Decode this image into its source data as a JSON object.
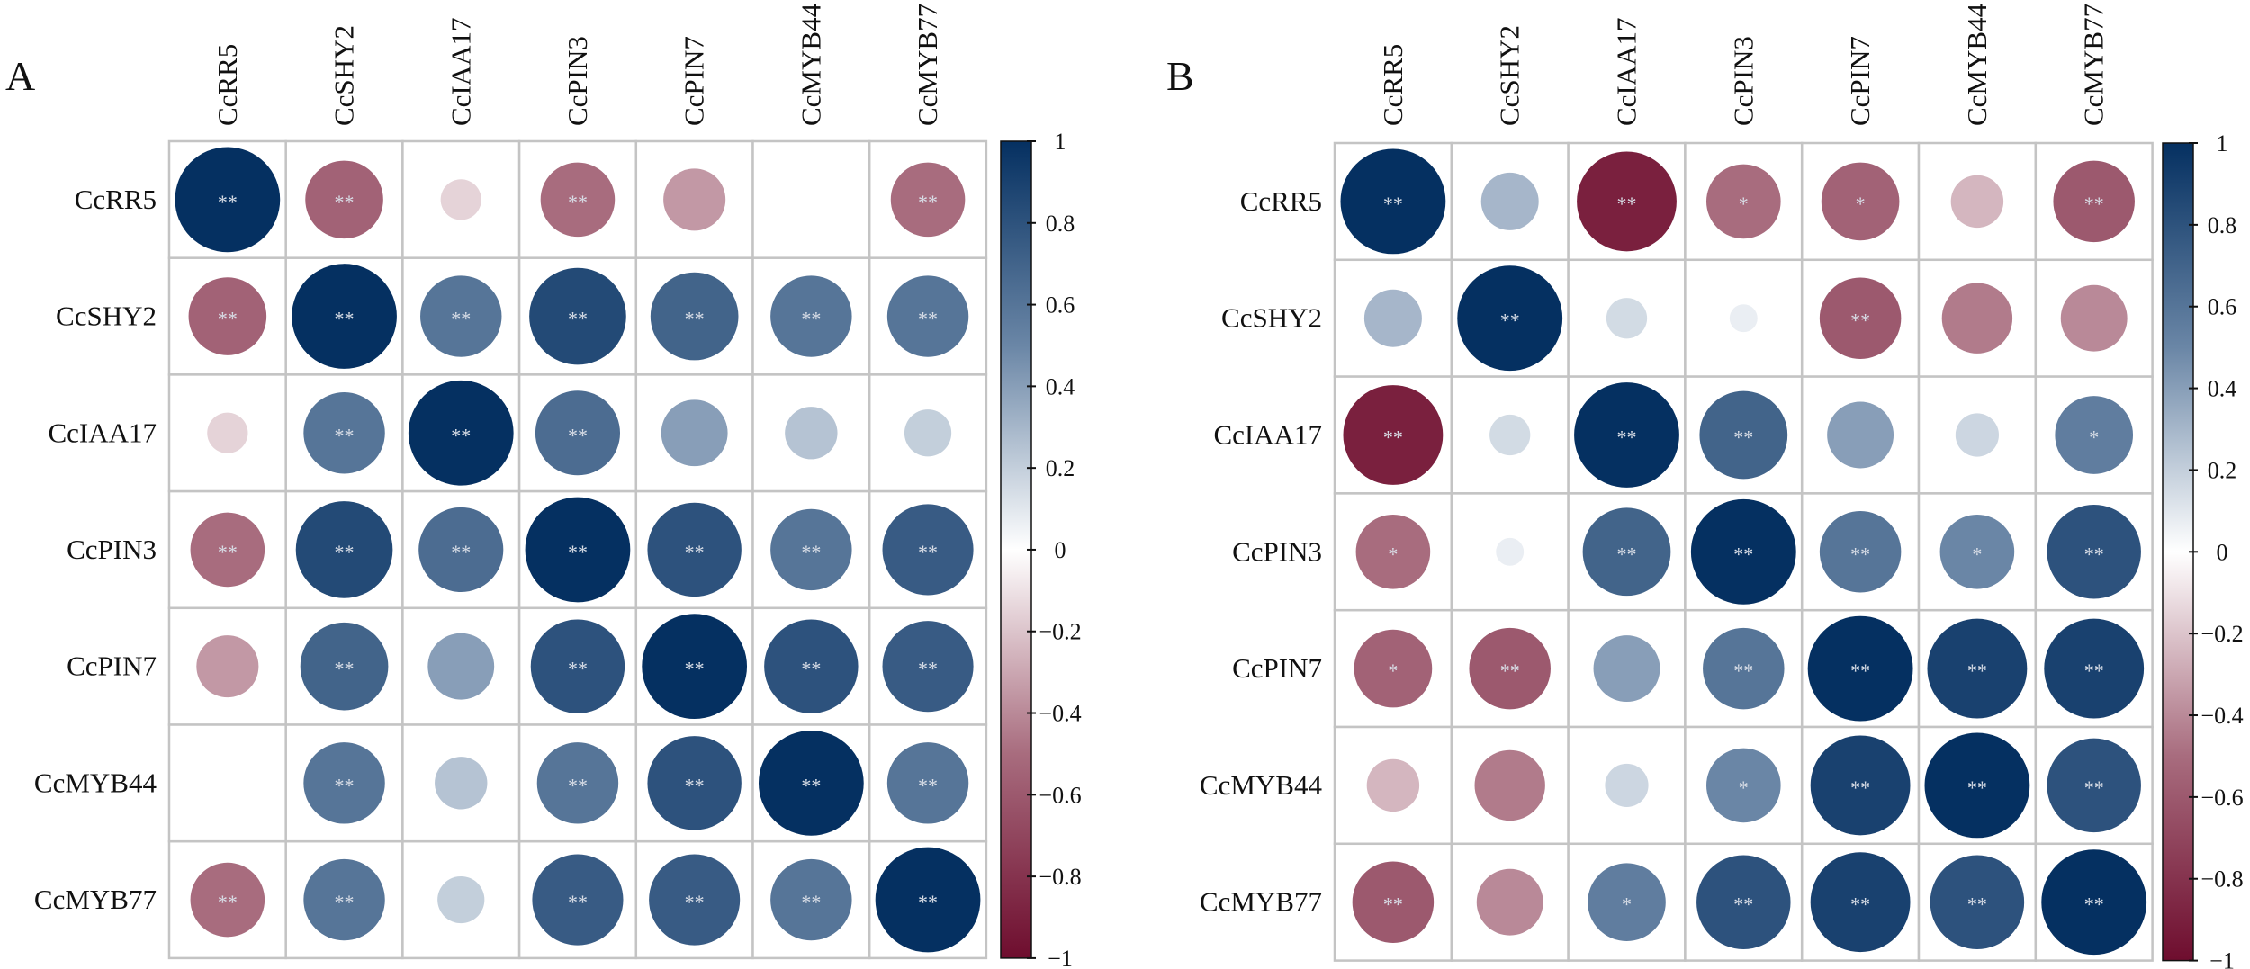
{
  "chart_data": [
    {
      "type": "heatmap",
      "panel_label": "A",
      "variables": [
        "CcRR5",
        "CcSHY2",
        "CcIAA17",
        "CcPIN3",
        "CcPIN7",
        "CcMYB44",
        "CcMYB77"
      ],
      "values": [
        [
          1.0,
          -0.55,
          -0.15,
          -0.5,
          -0.35,
          0.0,
          -0.5
        ],
        [
          -0.55,
          1.0,
          0.6,
          0.85,
          0.7,
          0.6,
          0.6
        ],
        [
          -0.15,
          0.6,
          1.0,
          0.65,
          0.4,
          0.25,
          0.2
        ],
        [
          -0.5,
          0.85,
          0.65,
          1.0,
          0.8,
          0.6,
          0.75
        ],
        [
          -0.35,
          0.7,
          0.4,
          0.8,
          1.0,
          0.8,
          0.75
        ],
        [
          0.0,
          0.6,
          0.25,
          0.6,
          0.8,
          1.0,
          0.6
        ],
        [
          -0.5,
          0.6,
          0.2,
          0.75,
          0.75,
          0.6,
          1.0
        ]
      ],
      "significance": [
        [
          "**",
          "**",
          "",
          "**",
          "",
          "",
          "**"
        ],
        [
          "**",
          "**",
          "**",
          "**",
          "**",
          "**",
          "**"
        ],
        [
          "",
          "**",
          "**",
          "**",
          "",
          "",
          ""
        ],
        [
          "**",
          "**",
          "**",
          "**",
          "**",
          "**",
          "**"
        ],
        [
          "",
          "**",
          "",
          "**",
          "**",
          "**",
          "**"
        ],
        [
          "",
          "**",
          "",
          "**",
          "**",
          "**",
          "**"
        ],
        [
          "**",
          "**",
          "",
          "**",
          "**",
          "**",
          "**"
        ]
      ],
      "colorbar": {
        "range": [
          -1,
          1
        ],
        "ticks": [
          "1",
          "0.8",
          "0.6",
          "0.4",
          "0.2",
          "0",
          "−0.2",
          "−0.4",
          "−0.6",
          "−0.8",
          "−1"
        ]
      }
    },
    {
      "type": "heatmap",
      "panel_label": "B",
      "variables": [
        "CcRR5",
        "CcSHY2",
        "CcIAA17",
        "CcPIN3",
        "CcPIN7",
        "CcMYB44",
        "CcMYB77"
      ],
      "values": [
        [
          1.0,
          0.3,
          -0.9,
          -0.5,
          -0.55,
          -0.25,
          -0.6
        ],
        [
          0.3,
          1.0,
          0.15,
          0.07,
          -0.6,
          -0.45,
          -0.4
        ],
        [
          -0.9,
          0.15,
          1.0,
          0.7,
          0.4,
          0.17,
          0.55
        ],
        [
          -0.5,
          0.07,
          0.7,
          1.0,
          0.6,
          0.5,
          0.8
        ],
        [
          -0.55,
          -0.6,
          0.4,
          0.6,
          1.0,
          0.9,
          0.9
        ],
        [
          -0.25,
          -0.45,
          0.17,
          0.5,
          0.9,
          1.0,
          0.8
        ],
        [
          -0.6,
          -0.4,
          0.55,
          0.8,
          0.9,
          0.8,
          1.0
        ]
      ],
      "significance": [
        [
          "**",
          "",
          "**",
          "*",
          "*",
          "",
          "**"
        ],
        [
          "",
          "**",
          "",
          "",
          "**",
          "",
          ""
        ],
        [
          "**",
          "",
          "**",
          "**",
          "",
          "",
          "*"
        ],
        [
          "*",
          "",
          "**",
          "**",
          "**",
          "*",
          "**"
        ],
        [
          "*",
          "**",
          "",
          "**",
          "**",
          "**",
          "**"
        ],
        [
          "",
          "",
          "",
          "*",
          "**",
          "**",
          "**"
        ],
        [
          "**",
          "",
          "*",
          "**",
          "**",
          "**",
          "**"
        ]
      ],
      "colorbar": {
        "range": [
          -1,
          1
        ],
        "ticks": [
          "1",
          "0.8",
          "0.6",
          "0.4",
          "0.2",
          "0",
          "−0.2",
          "−0.4",
          "−0.6",
          "−0.8",
          "−1"
        ]
      }
    }
  ],
  "colors": {
    "neg": "#6e0d2e",
    "neg_mid": "#a86c7e",
    "zero": "#ffffff",
    "pos_mid": "#6a86a6",
    "pos": "#053061",
    "grid": "#c4c4c4"
  }
}
